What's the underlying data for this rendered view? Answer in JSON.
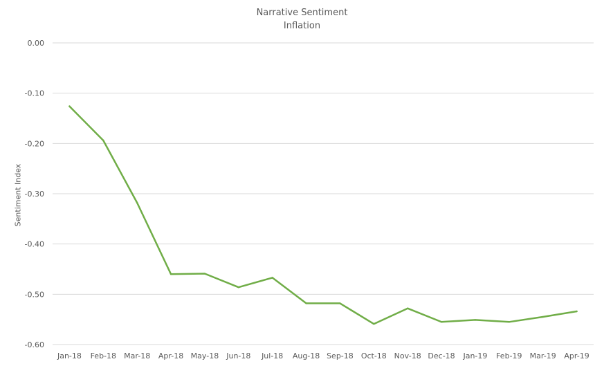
{
  "chart_data": {
    "type": "line",
    "title": "Narrative Sentiment",
    "subtitle": "Inflation",
    "xlabel": "",
    "ylabel": "Sentiment Index",
    "categories": [
      "Jan-18",
      "Feb-18",
      "Mar-18",
      "Apr-18",
      "May-18",
      "Jun-18",
      "Jul-18",
      "Aug-18",
      "Sep-18",
      "Oct-18",
      "Nov-18",
      "Dec-18",
      "Jan-19",
      "Feb-19",
      "Mar-19",
      "Apr-19"
    ],
    "series": [
      {
        "values": [
          -0.126,
          -0.194,
          -0.318,
          -0.46,
          -0.459,
          -0.486,
          -0.467,
          -0.518,
          -0.518,
          -0.559,
          -0.528,
          -0.555,
          -0.551,
          -0.555,
          -0.545,
          -0.534
        ]
      }
    ],
    "ylim": [
      -0.6,
      0.0
    ],
    "yticks": [
      "0.00",
      "-0.10",
      "-0.20",
      "-0.30",
      "-0.40",
      "-0.50",
      "-0.60"
    ],
    "grid": true,
    "legend": "none",
    "colors": {
      "line": "#70AD47",
      "grid": "#D9D9D9",
      "text": "#595959"
    }
  }
}
